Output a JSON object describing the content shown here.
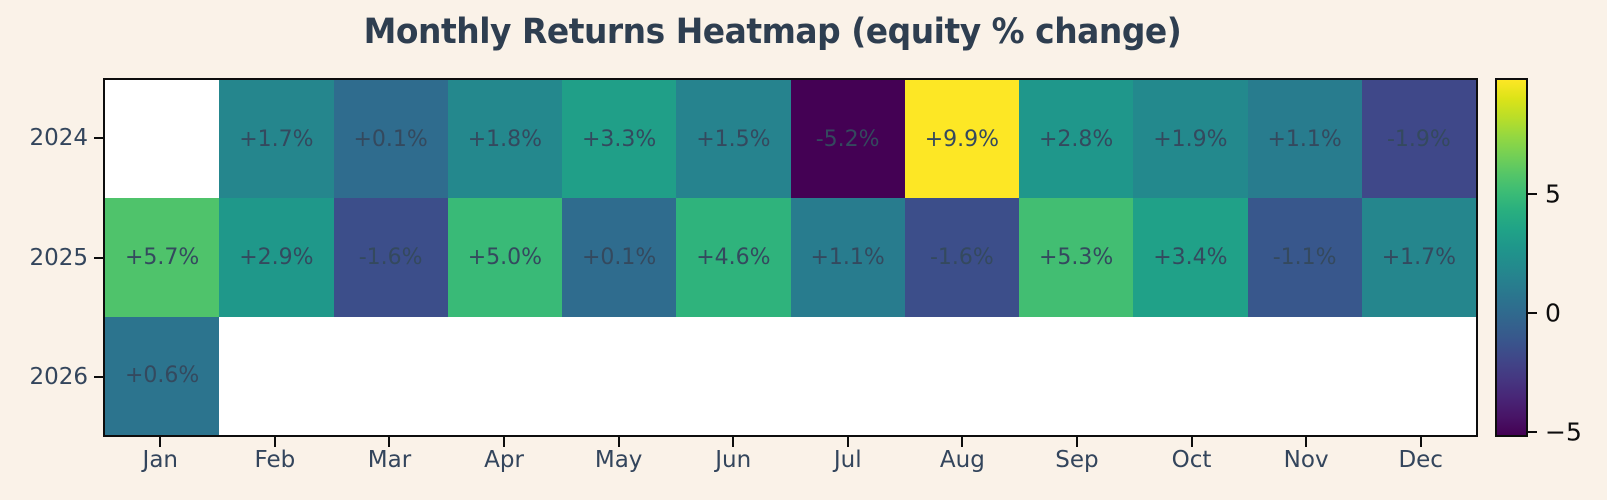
{
  "chart_data": {
    "type": "heatmap",
    "title": "Monthly Returns Heatmap (equity % change)",
    "xlabel": "",
    "ylabel": "",
    "columns": [
      "Jan",
      "Feb",
      "Mar",
      "Apr",
      "May",
      "Jun",
      "Jul",
      "Aug",
      "Sep",
      "Oct",
      "Nov",
      "Dec"
    ],
    "rows": [
      "2024",
      "2025",
      "2026"
    ],
    "series": [
      {
        "name": "2024",
        "values": [
          null,
          1.7,
          0.1,
          1.8,
          3.3,
          1.5,
          -5.2,
          9.9,
          2.8,
          1.9,
          1.1,
          -1.9
        ],
        "labels": [
          "",
          "+1.7%",
          "+0.1%",
          "+1.8%",
          "+3.3%",
          "+1.5%",
          "-5.2%",
          "+9.9%",
          "+2.8%",
          "+1.9%",
          "+1.1%",
          "-1.9%"
        ]
      },
      {
        "name": "2025",
        "values": [
          5.7,
          2.9,
          -1.6,
          5.0,
          0.1,
          4.6,
          1.1,
          -1.6,
          5.3,
          3.4,
          -1.1,
          1.7
        ],
        "labels": [
          "+5.7%",
          "+2.9%",
          "-1.6%",
          "+5.0%",
          "+0.1%",
          "+4.6%",
          "+1.1%",
          "-1.6%",
          "+5.3%",
          "+3.4%",
          "-1.1%",
          "+1.7%"
        ]
      },
      {
        "name": "2026",
        "values": [
          0.6,
          null,
          null,
          null,
          null,
          null,
          null,
          null,
          null,
          null,
          null,
          null
        ],
        "labels": [
          "+0.6%",
          "",
          "",
          "",
          "",
          "",
          "",
          "",
          "",
          "",
          "",
          ""
        ]
      }
    ],
    "colorbar": {
      "colormap": "viridis",
      "vmin": -5.2,
      "vmax": 9.9,
      "ticks": [
        {
          "value": 5,
          "label": "5"
        },
        {
          "value": 0,
          "label": "0"
        },
        {
          "value": -5,
          "label": "−5"
        }
      ]
    },
    "legend": "none",
    "grid": "off",
    "colors": {
      "background": "#faf2e8",
      "title_text": "#2e3e50",
      "axis_text": "#33455c",
      "cell_text": "#34495e",
      "colorbar_text": "#0d0d0d",
      "spine": "#0d0d0d",
      "missing_cell": "#ffffff",
      "viridis": [
        "#440154",
        "#481567",
        "#482677",
        "#453781",
        "#404688",
        "#39558C",
        "#33638D",
        "#2D708E",
        "#287D8E",
        "#238A8D",
        "#1F968B",
        "#20A387",
        "#29AF7F",
        "#3CBC75",
        "#56C667",
        "#75D054",
        "#95D840",
        "#BADE28",
        "#DCE318",
        "#FDE725"
      ]
    }
  }
}
